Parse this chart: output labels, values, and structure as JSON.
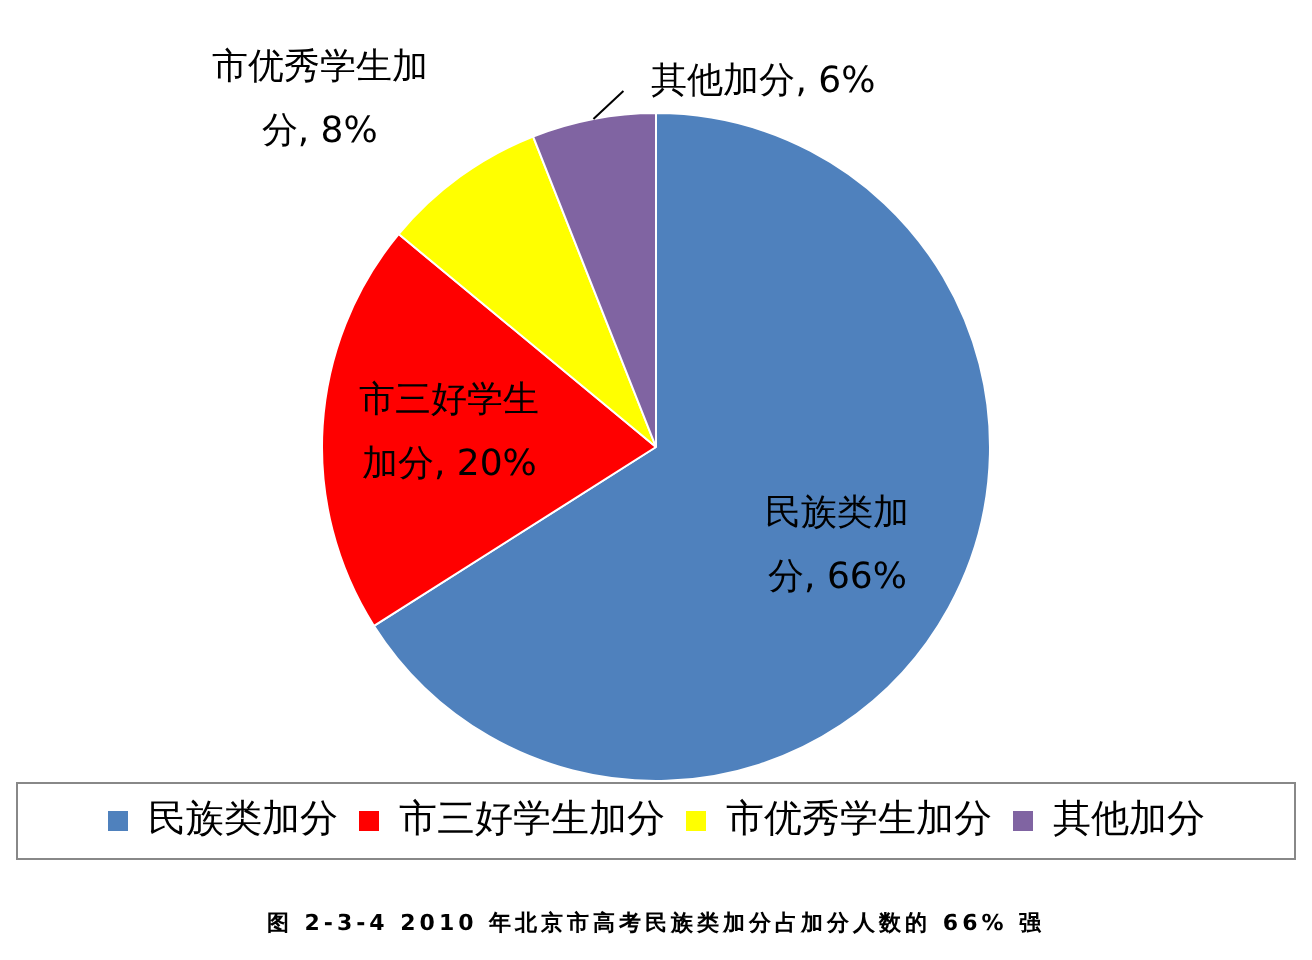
{
  "chart_data": {
    "type": "pie",
    "categories": [
      "民族类加分",
      "市三好学生加分",
      "市优秀学生加分",
      "其他加分"
    ],
    "values": [
      66,
      20,
      8,
      6
    ],
    "colors": [
      "#4f81bd",
      "#ff0000",
      "#ffff00",
      "#8064a2"
    ],
    "value_labels": [
      "民族类加分, 66%",
      "市三好学生加分, 20%",
      "市优秀学生加分, 8%",
      "其他加分, 6%"
    ],
    "legend": "bottom",
    "annotations": [
      "图 2-3-4 2010 年北京市高考民族类加分占加分人数的 66% 强"
    ]
  }
}
